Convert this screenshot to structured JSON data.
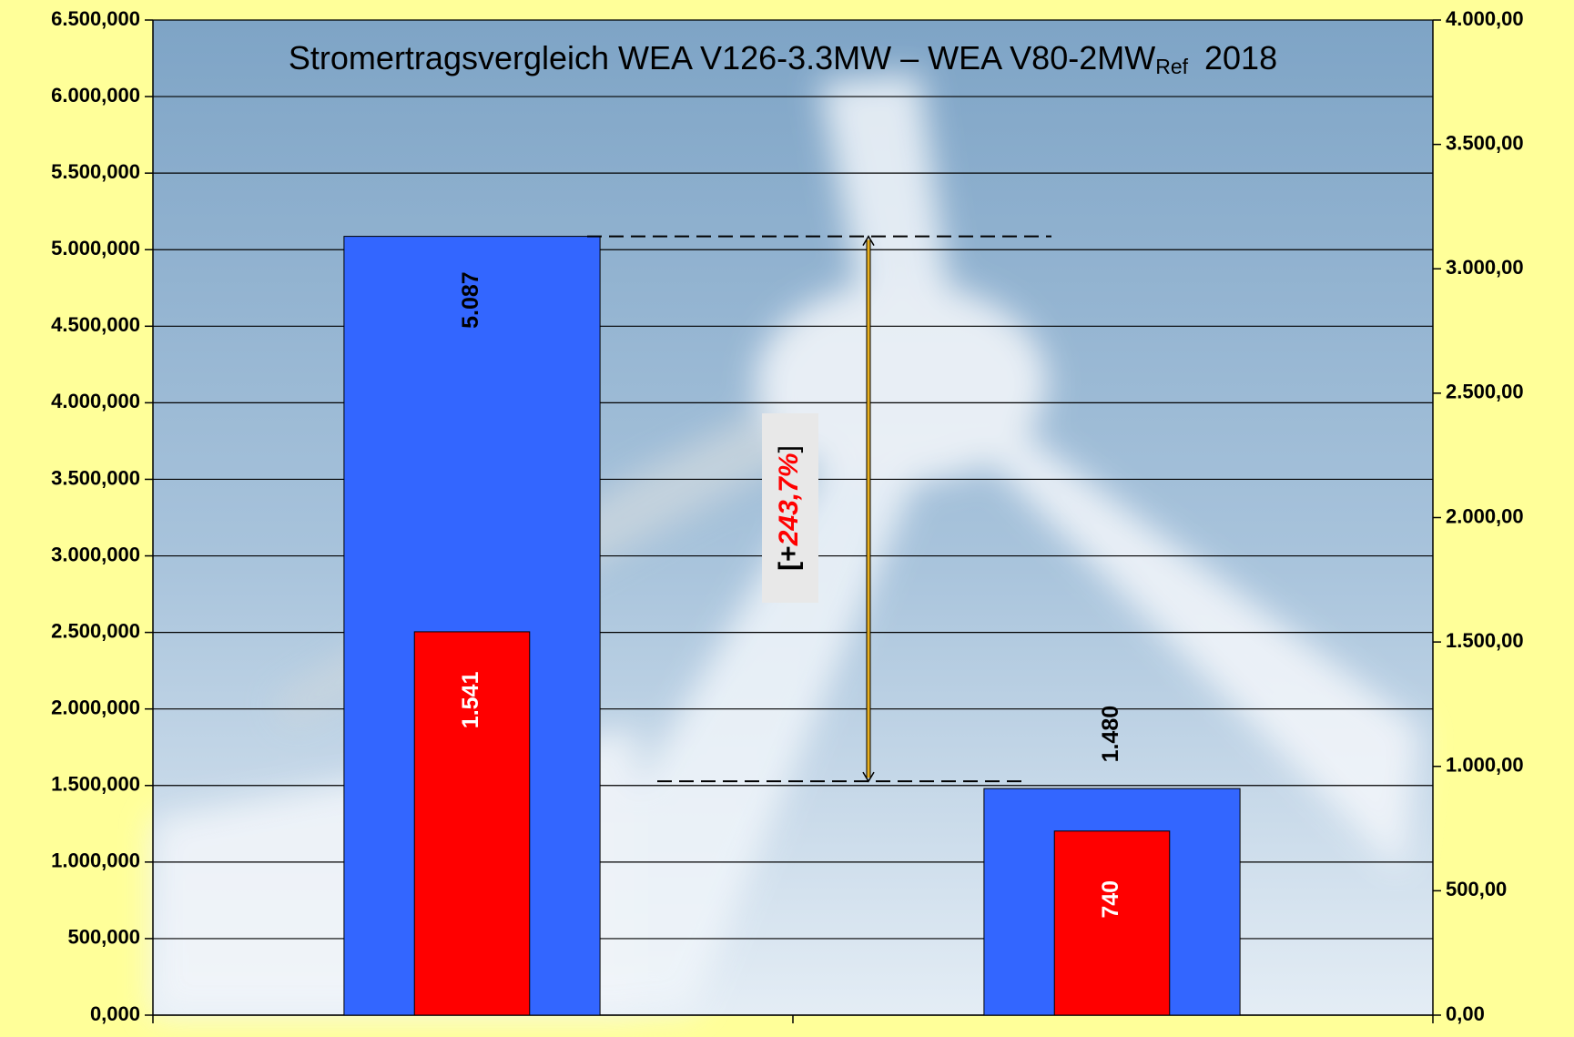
{
  "chart_data": {
    "type": "bar",
    "title": "Stromertragsvergleich WEA V126-3.3MW – WEA V80-2MW",
    "title_subscript": "Ref",
    "title_suffix": "2018",
    "annotation": {
      "open": "[+",
      "text": "243,7%",
      "close": "]"
    },
    "categories": [
      null,
      null
    ],
    "series": [
      {
        "color": "#3366ff",
        "values": [
          5087000,
          1480000
        ],
        "value_labels": [
          "5.087",
          "1.480"
        ]
      },
      {
        "color": "#ff0000",
        "axis": "y2",
        "values": [
          1541,
          740
        ],
        "value_labels": [
          "1.541",
          "740"
        ]
      }
    ],
    "ylim": [
      0,
      6500000
    ],
    "yticks": [
      {
        "value": 0,
        "label": "0,000"
      },
      {
        "value": 500000,
        "label": "500,000"
      },
      {
        "value": 1000000,
        "label": "1.000,000"
      },
      {
        "value": 1500000,
        "label": "1.500,000"
      },
      {
        "value": 2000000,
        "label": "2.000,000"
      },
      {
        "value": 2500000,
        "label": "2.500,000"
      },
      {
        "value": 3000000,
        "label": "3.000,000"
      },
      {
        "value": 3500000,
        "label": "3.500,000"
      },
      {
        "value": 4000000,
        "label": "4.000,000"
      },
      {
        "value": 4500000,
        "label": "4.500,000"
      },
      {
        "value": 5000000,
        "label": "5.000,000"
      },
      {
        "value": 5500000,
        "label": "5.500,000"
      },
      {
        "value": 6000000,
        "label": "6.000,000"
      },
      {
        "value": 6500000,
        "label": "6.500,000"
      }
    ],
    "y2lim": [
      0,
      4000
    ],
    "y2ticks": [
      {
        "value": 0,
        "label": "0,00"
      },
      {
        "value": 500,
        "label": "500,00"
      },
      {
        "value": 1000,
        "label": "1.000,00"
      },
      {
        "value": 1500,
        "label": "1.500,00"
      },
      {
        "value": 2000,
        "label": "2.000,00"
      },
      {
        "value": 2500,
        "label": "2.500,00"
      },
      {
        "value": 3000,
        "label": "3.000,00"
      },
      {
        "value": 3500,
        "label": "3.500,00"
      },
      {
        "value": 4000,
        "label": "4.000,00"
      }
    ],
    "grid": true
  }
}
